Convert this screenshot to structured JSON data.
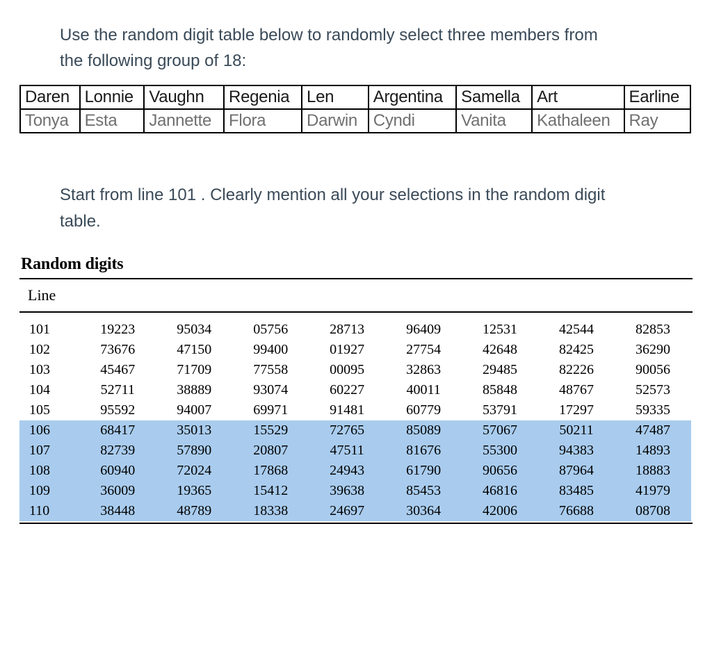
{
  "intro": {
    "line1": "Use the random digit table below to randomly select three members from",
    "line2": "the following group of 18:"
  },
  "names": {
    "row0": [
      "Daren",
      "Lonnie",
      "Vaughn",
      "Regenia",
      "Len",
      "Argentina",
      "Samella",
      "Art",
      "Earline"
    ],
    "row1": [
      "Tonya",
      "Esta",
      "Jannette",
      "Flora",
      "Darwin",
      "Cyndi",
      "Vanita",
      "Kathaleen",
      "Ray"
    ]
  },
  "directive": {
    "line1": "Start from line 101 . Clearly mention all your selections in the random digit",
    "line2": "table."
  },
  "rd": {
    "title": "Random digits",
    "lineHeader": "Line",
    "highlight_start_index": 5,
    "rows": [
      {
        "line": "101",
        "vals": [
          "19223",
          "95034",
          "05756",
          "28713",
          "96409",
          "12531",
          "42544",
          "82853"
        ]
      },
      {
        "line": "102",
        "vals": [
          "73676",
          "47150",
          "99400",
          "01927",
          "27754",
          "42648",
          "82425",
          "36290"
        ]
      },
      {
        "line": "103",
        "vals": [
          "45467",
          "71709",
          "77558",
          "00095",
          "32863",
          "29485",
          "82226",
          "90056"
        ]
      },
      {
        "line": "104",
        "vals": [
          "52711",
          "38889",
          "93074",
          "60227",
          "40011",
          "85848",
          "48767",
          "52573"
        ]
      },
      {
        "line": "105",
        "vals": [
          "95592",
          "94007",
          "69971",
          "91481",
          "60779",
          "53791",
          "17297",
          "59335"
        ]
      },
      {
        "line": "106",
        "vals": [
          "68417",
          "35013",
          "15529",
          "72765",
          "85089",
          "57067",
          "50211",
          "47487"
        ]
      },
      {
        "line": "107",
        "vals": [
          "82739",
          "57890",
          "20807",
          "47511",
          "81676",
          "55300",
          "94383",
          "14893"
        ]
      },
      {
        "line": "108",
        "vals": [
          "60940",
          "72024",
          "17868",
          "24943",
          "61790",
          "90656",
          "87964",
          "18883"
        ]
      },
      {
        "line": "109",
        "vals": [
          "36009",
          "19365",
          "15412",
          "39638",
          "85453",
          "46816",
          "83485",
          "41979"
        ]
      },
      {
        "line": "110",
        "vals": [
          "38448",
          "48789",
          "18338",
          "24697",
          "30364",
          "42006",
          "76688",
          "08708"
        ]
      }
    ]
  },
  "style": {
    "highlight_bg": "#a9ccee",
    "text_primary": "#3a4a58",
    "names_gray": "#707070",
    "border_color": "#000000",
    "page_bg": "#ffffff",
    "intro_fontsize": 24,
    "names_fontsize": 24,
    "digits_fontsize": 20
  }
}
